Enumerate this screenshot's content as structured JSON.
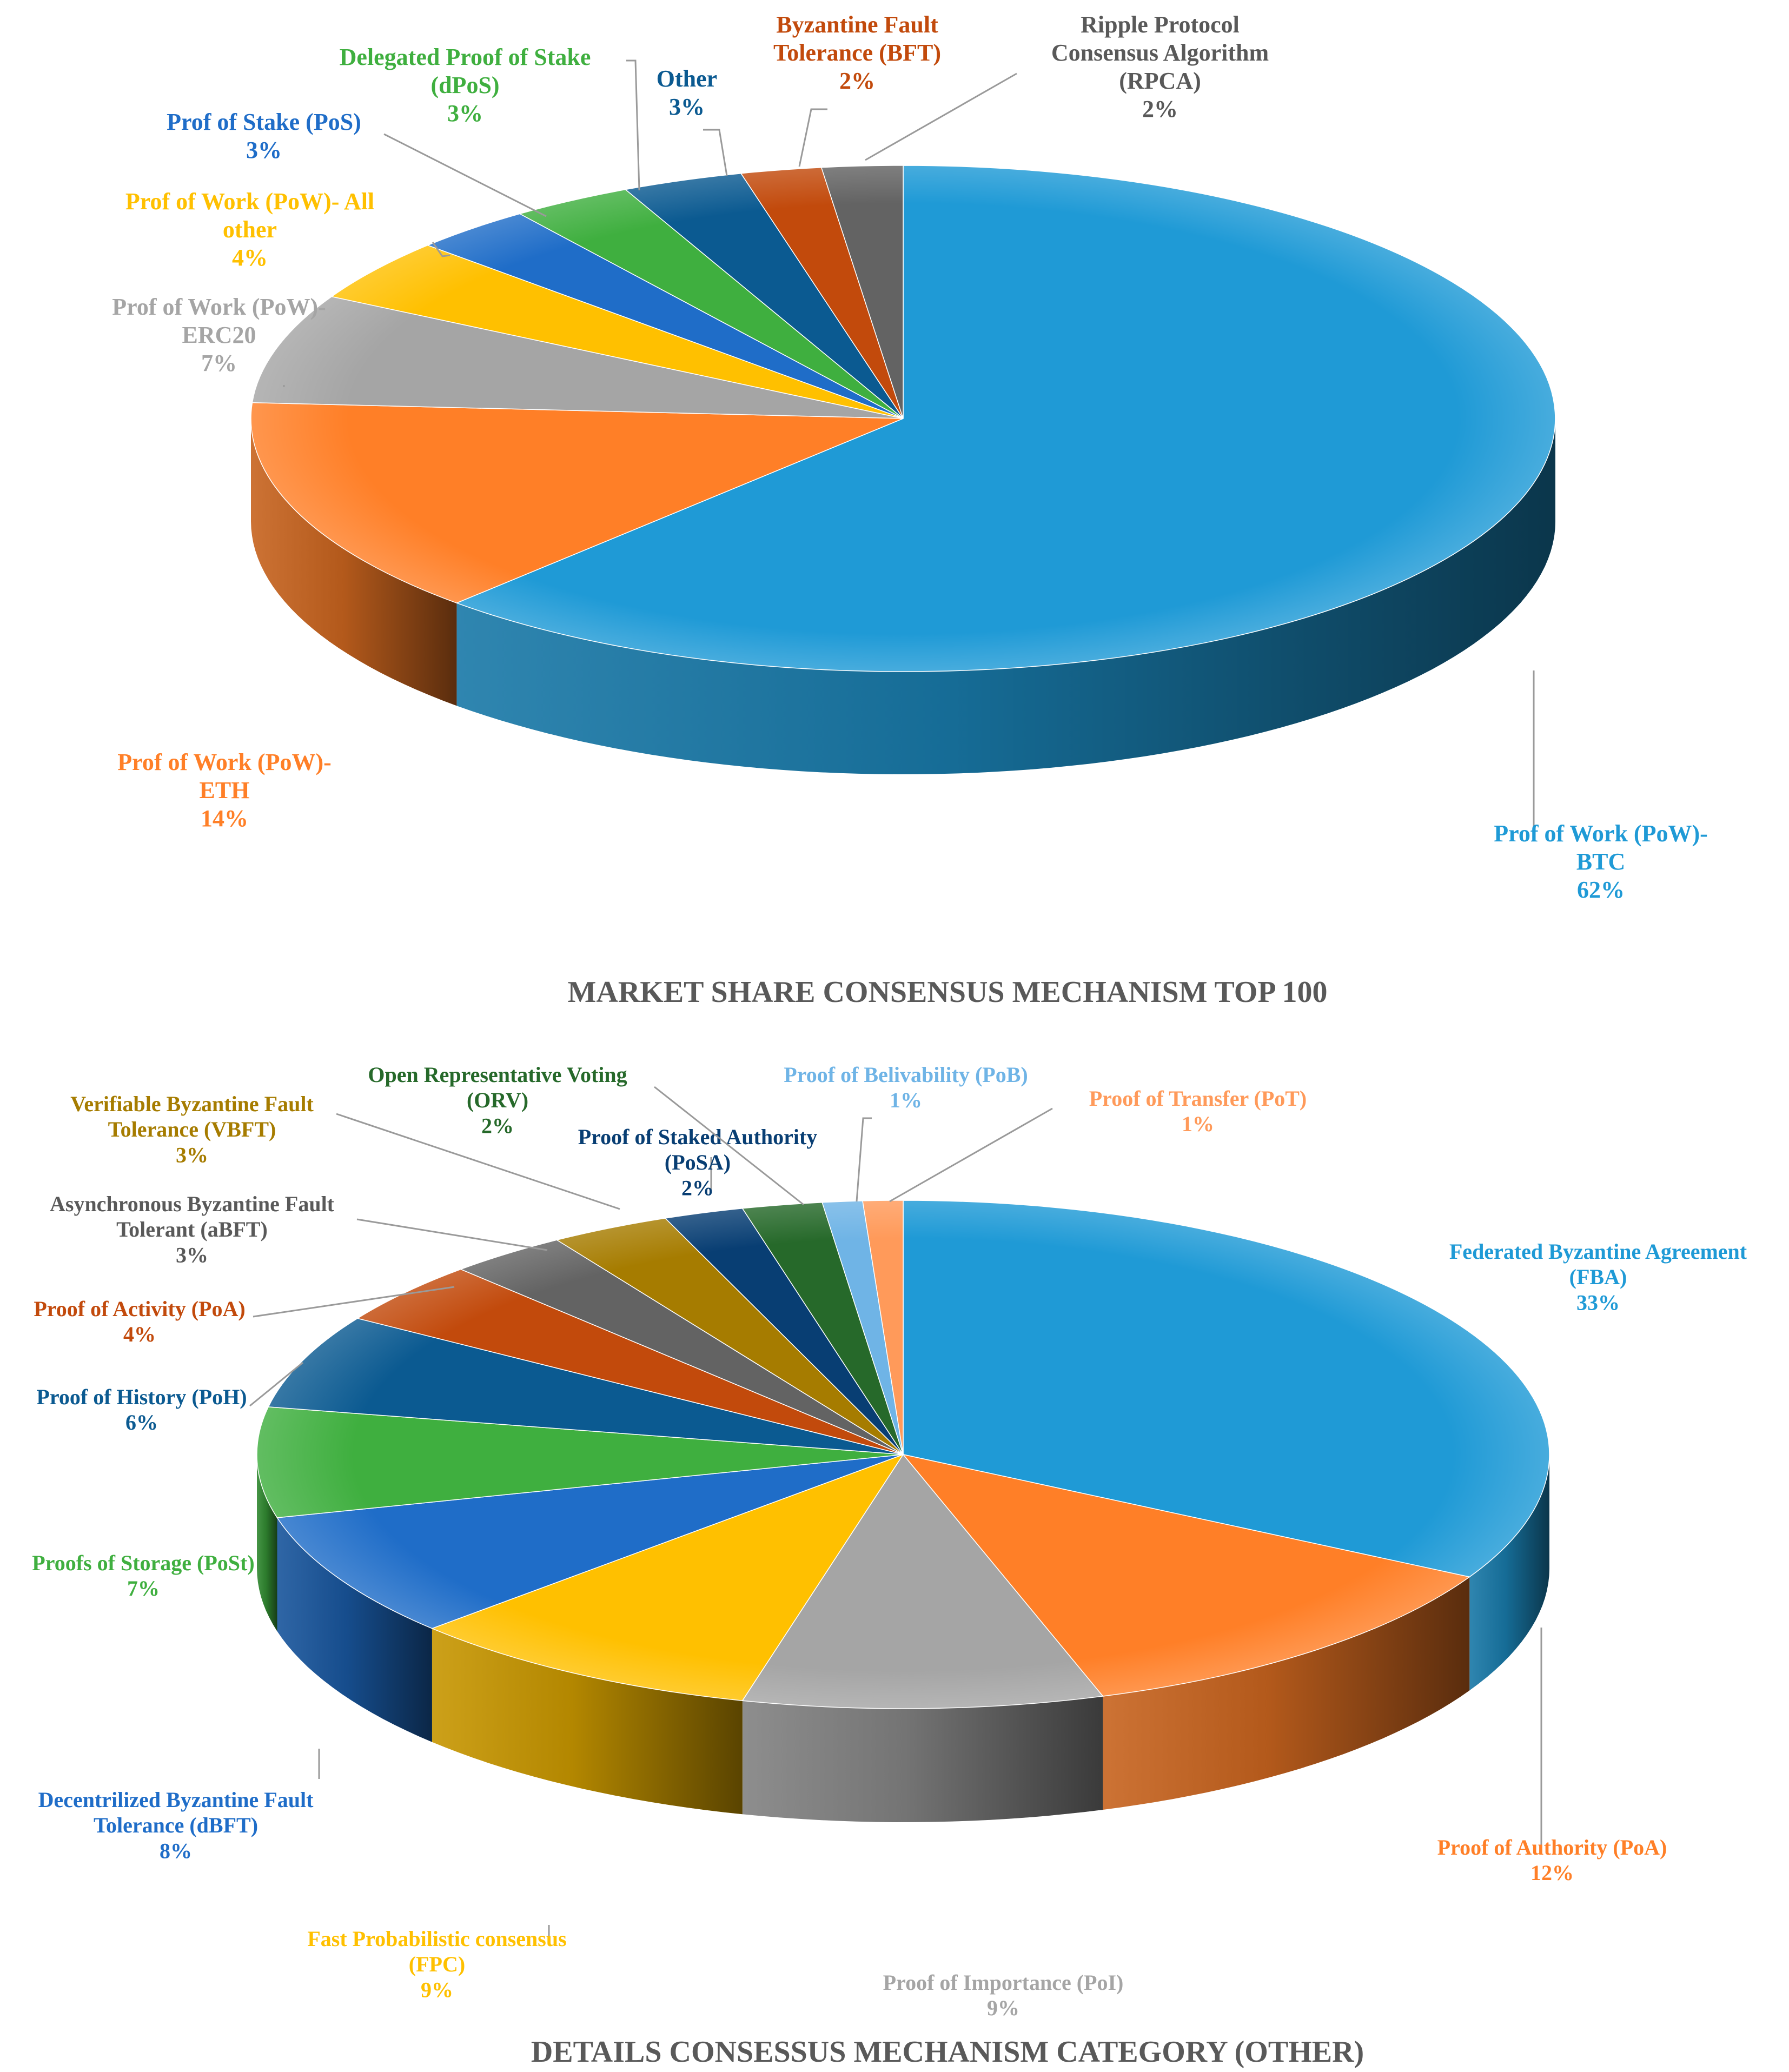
{
  "chart_data": [
    {
      "type": "pie",
      "title": "MARKET SHARE CONSENSUS MECHANISM TOP 100",
      "slices": [
        {
          "label": [
            "Prof of Work (PoW)-",
            "BTC"
          ],
          "pct_label": "62%",
          "value": 62,
          "color": "#1F9AD6"
        },
        {
          "label": [
            "Prof of Work (PoW)-",
            "ETH"
          ],
          "pct_label": "14%",
          "value": 14,
          "color": "#FF7F27"
        },
        {
          "label": [
            "Prof of Work (PoW)-",
            "ERC20"
          ],
          "pct_label": "7%",
          "value": 7,
          "color": "#A5A5A5"
        },
        {
          "label": [
            "Prof of Work (PoW)- All",
            "other"
          ],
          "pct_label": "4%",
          "value": 4,
          "color": "#FFC000"
        },
        {
          "label": [
            "Prof of Stake (PoS)"
          ],
          "pct_label": "3%",
          "value": 3,
          "color": "#1F6DC8"
        },
        {
          "label": [
            "Delegated Proof of Stake",
            "(dPoS)"
          ],
          "pct_label": "3%",
          "value": 3,
          "color": "#3FAF3F"
        },
        {
          "label": [
            "Other"
          ],
          "pct_label": "3%",
          "value": 3,
          "color": "#0B5A91"
        },
        {
          "label": [
            "Byzantine Fault",
            "Tolerance (BFT)"
          ],
          "pct_label": "2%",
          "value": 2,
          "color": "#C24A0C"
        },
        {
          "label": [
            "Ripple Protocol",
            "Consensus Algorithm",
            "(RPCA)"
          ],
          "pct_label": "2%",
          "value": 2,
          "color": "#636363"
        }
      ]
    },
    {
      "type": "pie",
      "title": "DETAILS CONSESSUS MECHANISM CATEGORY (OTHER)",
      "slices": [
        {
          "label": [
            "Federated Byzantine Agreement",
            "(FBA)"
          ],
          "pct_label": "33%",
          "value": 33,
          "color": "#1F9AD6"
        },
        {
          "label": [
            "Proof of Authority  (PoA)"
          ],
          "pct_label": "12%",
          "value": 12,
          "color": "#FF7F27"
        },
        {
          "label": [
            "Proof of Importance (PoI)"
          ],
          "pct_label": "9%",
          "value": 9,
          "color": "#A5A5A5"
        },
        {
          "label": [
            "Fast Probabilistic consensus",
            "(FPC)"
          ],
          "pct_label": "9%",
          "value": 9,
          "color": "#FFC000"
        },
        {
          "label": [
            "Decentrilized Byzantine Fault",
            "Tolerance (dBFT)"
          ],
          "pct_label": "8%",
          "value": 8,
          "color": "#1F6DC8"
        },
        {
          "label": [
            "Proofs of Storage (PoSt)"
          ],
          "pct_label": "7%",
          "value": 7,
          "color": "#3FAF3F"
        },
        {
          "label": [
            "Proof of History (PoH)"
          ],
          "pct_label": "6%",
          "value": 6,
          "color": "#0B5A91"
        },
        {
          "label": [
            "Proof of Activity  (PoA)"
          ],
          "pct_label": "4%",
          "value": 4,
          "color": "#C24A0C"
        },
        {
          "label": [
            "Asynchronous Byzantine Fault",
            "Tolerant (aBFT)"
          ],
          "pct_label": "3%",
          "value": 3,
          "color": "#636363"
        },
        {
          "label": [
            "Verifiable Byzantine Fault",
            "Tolerance (VBFT)"
          ],
          "pct_label": "3%",
          "value": 3,
          "color": "#A67C00"
        },
        {
          "label": [
            "Proof of Staked Authority",
            "(PoSA)"
          ],
          "pct_label": "2%",
          "value": 2,
          "color": "#083E73"
        },
        {
          "label": [
            "Open Representative Voting",
            "(ORV)"
          ],
          "pct_label": "2%",
          "value": 2,
          "color": "#26692A"
        },
        {
          "label": [
            "Proof of Belivability (PoB)"
          ],
          "pct_label": "1%",
          "value": 1,
          "color": "#6FB4E6"
        },
        {
          "label": [
            "Proof of Transfer (PoT)"
          ],
          "pct_label": "1%",
          "value": 1,
          "color": "#FF9A5A"
        }
      ]
    }
  ]
}
